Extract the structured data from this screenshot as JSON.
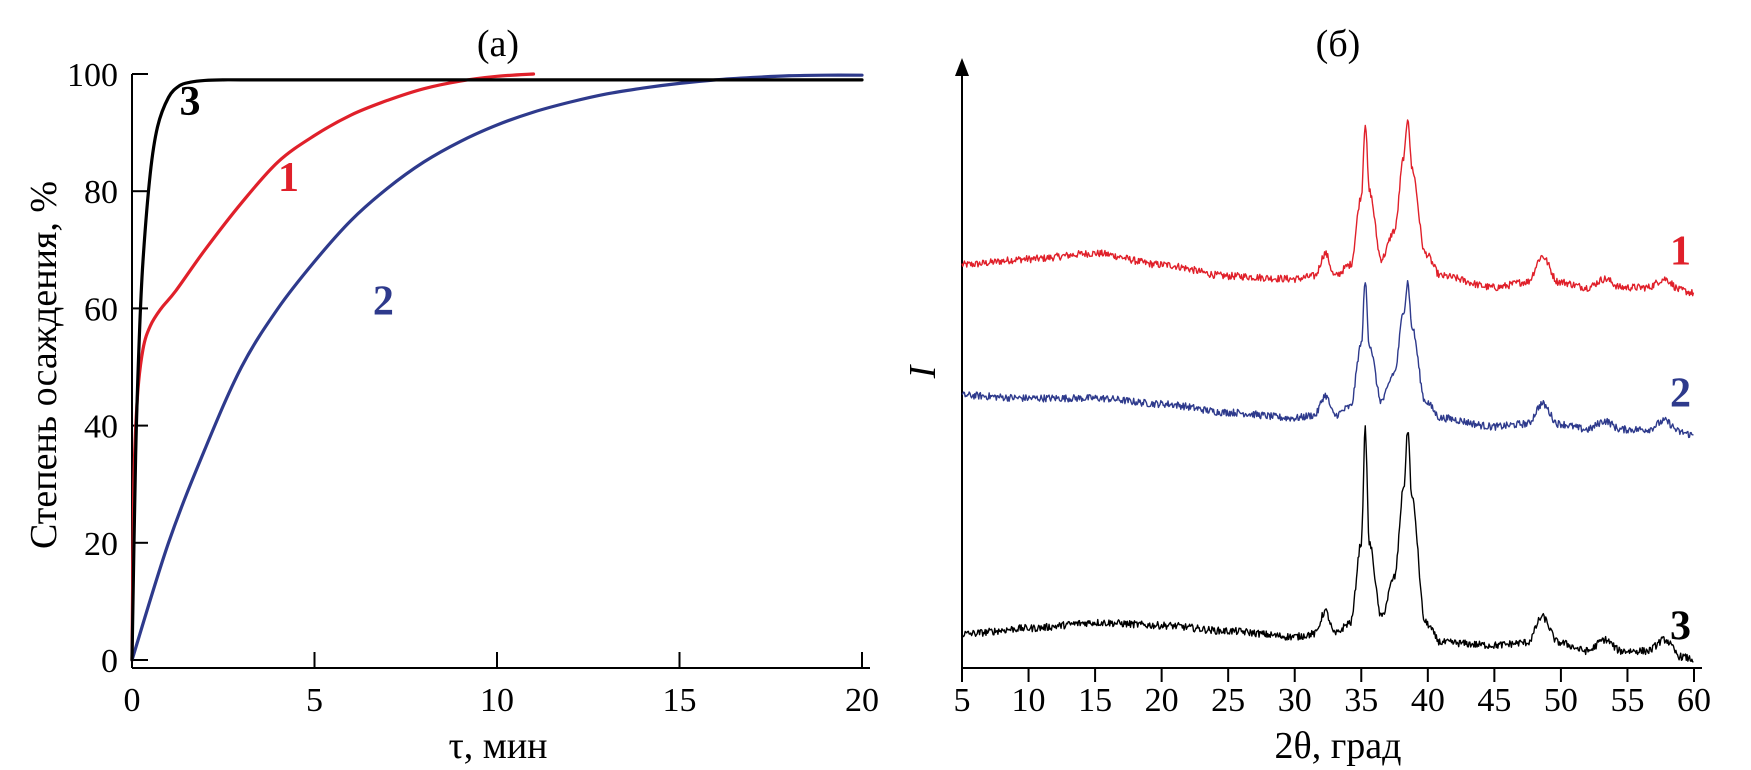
{
  "chart_data": [
    {
      "type": "line",
      "panel_label": "(а)",
      "xlabel": "τ, мин",
      "ylabel": "Степень осаждения, %",
      "xlim": [
        0,
        20
      ],
      "ylim": [
        0,
        100
      ],
      "xticks": [
        0,
        5,
        10,
        15,
        20
      ],
      "yticks": [
        0,
        20,
        40,
        60,
        80,
        100
      ],
      "grid": false,
      "series": [
        {
          "name": "1",
          "color": "#e0202a",
          "x": [
            0,
            0.05,
            0.15,
            0.3,
            0.5,
            0.8,
            1.2,
            2,
            3,
            4,
            5,
            6,
            7,
            8,
            9,
            10,
            11
          ],
          "y": [
            0,
            30,
            45,
            53,
            57,
            60,
            63,
            70,
            78,
            85,
            89.5,
            93,
            95.5,
            97.5,
            98.8,
            99.6,
            100
          ]
        },
        {
          "name": "2",
          "color": "#2e3a8c",
          "x": [
            0,
            1,
            2,
            3,
            4,
            5,
            6,
            7,
            8,
            9,
            10,
            11,
            12,
            13,
            14,
            15,
            16,
            17,
            18,
            19,
            20
          ],
          "y": [
            0,
            20,
            36,
            50,
            60,
            68,
            75,
            80.5,
            85,
            88.5,
            91.3,
            93.5,
            95.2,
            96.6,
            97.6,
            98.4,
            99,
            99.4,
            99.7,
            99.8,
            99.8
          ]
        },
        {
          "name": "3",
          "color": "#000000",
          "x": [
            0,
            0.1,
            0.2,
            0.3,
            0.5,
            0.7,
            1,
            1.3,
            1.6,
            2,
            2.5,
            3,
            5,
            10,
            15,
            20
          ],
          "y": [
            0,
            35,
            55,
            68,
            83,
            91,
            96,
            98,
            98.6,
            98.9,
            99,
            99,
            99,
            99,
            99,
            99
          ]
        }
      ]
    },
    {
      "type": "line",
      "panel_label": "(б)",
      "xlabel": "2θ, град",
      "ylabel": "I",
      "xlim": [
        5,
        60
      ],
      "xticks": [
        5,
        10,
        15,
        20,
        25,
        30,
        35,
        40,
        45,
        50,
        55,
        60
      ],
      "yticks": [],
      "grid": false,
      "note_units": "y values are relative intensity (arbitrary units, 0–100 of plot height); curves are vertically offset",
      "series": [
        {
          "name": "1",
          "color": "#e0202a",
          "x": [
            5,
            10,
            15,
            20,
            25,
            30,
            31.5,
            32.3,
            33,
            34.2,
            35,
            35.3,
            35.6,
            36.5,
            37.5,
            38.2,
            38.5,
            38.8,
            39.8,
            41,
            45,
            47.5,
            48.6,
            49.8,
            52,
            53.3,
            54.5,
            56.5,
            57.8,
            59,
            60
          ],
          "y": [
            71,
            72,
            73,
            71,
            69,
            68.5,
            69,
            73,
            69,
            71,
            83,
            96,
            84,
            72,
            77,
            90,
            97,
            88,
            73,
            69,
            67,
            68,
            72.5,
            68,
            67,
            68.5,
            67,
            67,
            68.5,
            66.5,
            66
          ]
        },
        {
          "name": "2",
          "color": "#2e3a8c",
          "x": [
            5,
            10,
            15,
            20,
            25,
            30,
            31.5,
            32.3,
            33,
            34.2,
            35,
            35.3,
            35.6,
            36.5,
            37.5,
            38.2,
            38.5,
            38.8,
            39.8,
            41,
            45,
            47.5,
            48.6,
            49.8,
            52,
            53.3,
            54.5,
            56.5,
            57.8,
            59,
            60
          ],
          "y": [
            48,
            47.5,
            47.5,
            46.5,
            45,
            44,
            44.5,
            48,
            44.5,
            46,
            57,
            68,
            57,
            47,
            52,
            63,
            68,
            60,
            47,
            44,
            42.5,
            43,
            46.5,
            43,
            42,
            43.5,
            42,
            42,
            43.5,
            41.5,
            41
          ]
        },
        {
          "name": "3",
          "color": "#000000",
          "x": [
            5,
            10,
            15,
            20,
            25,
            30,
            31.5,
            32.3,
            33,
            34.2,
            35,
            35.3,
            35.6,
            36.5,
            37.5,
            38.2,
            38.5,
            38.8,
            39.8,
            41,
            45,
            47.5,
            48.6,
            49.8,
            52,
            53.3,
            54.5,
            56.5,
            57.8,
            59,
            60
          ],
          "y": [
            6,
            7,
            8,
            7.5,
            6.5,
            5.5,
            6,
            10,
            6,
            8,
            22,
            42,
            22,
            9,
            16,
            32,
            42,
            30,
            8,
            4.5,
            4,
            4.5,
            9,
            4.5,
            3,
            5,
            3,
            3,
            5,
            2,
            1.5
          ]
        }
      ]
    }
  ]
}
